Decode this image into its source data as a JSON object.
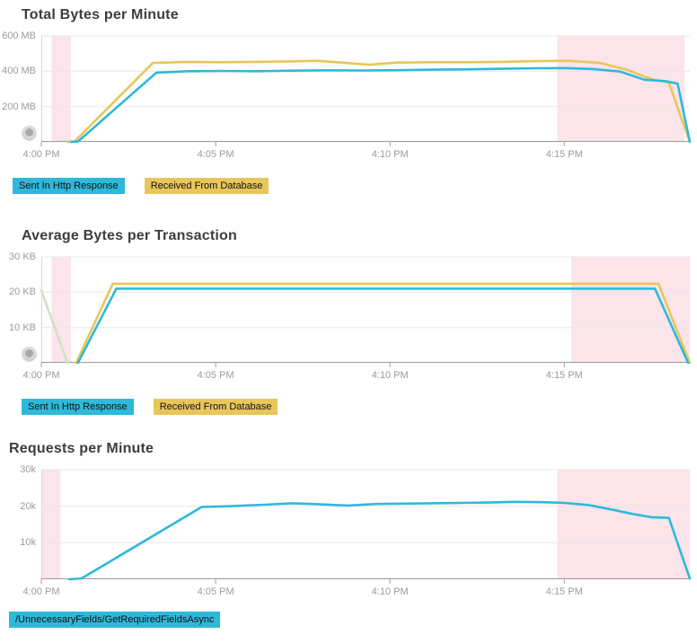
{
  "chart_data": [
    {
      "type": "line",
      "title": "Total Bytes per Minute",
      "y_unit": "MB",
      "xlim": [
        0,
        18.6
      ],
      "ylim": [
        0,
        600
      ],
      "grid": true,
      "legend_position": "bottom-left",
      "yticks": [
        {
          "v": 600,
          "label": "600 MB"
        },
        {
          "v": 400,
          "label": "400 MB"
        },
        {
          "v": 200,
          "label": "200 MB"
        }
      ],
      "xticks": [
        {
          "v": 0,
          "label": "4:00 PM"
        },
        {
          "v": 5,
          "label": "4:05 PM"
        },
        {
          "v": 10,
          "label": "4:10 PM"
        },
        {
          "v": 15,
          "label": "4:15 PM"
        }
      ],
      "highlight_bands": [
        [
          0.3,
          0.85
        ],
        [
          14.8,
          18.45
        ]
      ],
      "highlight_color": "#fbe4ea",
      "has_handle": true,
      "series": [
        {
          "name": "Sent In Http Response",
          "color": "#2eb9da",
          "x": [
            0.85,
            1.05,
            3.3,
            4.2,
            5.2,
            6.2,
            7.2,
            8.2,
            9.2,
            10.2,
            11.2,
            12.2,
            13.2,
            14.2,
            15.0,
            15.8,
            16.6,
            17.3,
            17.9,
            18.25,
            18.6
          ],
          "values": [
            0,
            2,
            392,
            400,
            401,
            400,
            403,
            405,
            404,
            406,
            409,
            411,
            414,
            417,
            418,
            413,
            398,
            352,
            344,
            330,
            0
          ]
        },
        {
          "name": "Received From Database",
          "color": "#e9c65a",
          "x": [
            0.75,
            0.95,
            3.2,
            4.2,
            5.2,
            6.2,
            7.2,
            7.9,
            8.7,
            9.4,
            10.2,
            11.2,
            12.2,
            13.2,
            14.2,
            15.1,
            16.0,
            16.8,
            17.5,
            18.0,
            18.6
          ],
          "values": [
            0,
            2,
            447,
            453,
            451,
            453,
            456,
            459,
            448,
            437,
            449,
            451,
            451,
            453,
            457,
            459,
            448,
            408,
            355,
            335,
            0
          ]
        }
      ]
    },
    {
      "type": "line",
      "title": "Average Bytes per Transaction",
      "y_unit": "KB",
      "xlim": [
        0,
        18.6
      ],
      "ylim": [
        0,
        30
      ],
      "grid": true,
      "legend_position": "bottom-left",
      "yticks": [
        {
          "v": 30,
          "label": "30 KB"
        },
        {
          "v": 20,
          "label": "20 KB"
        },
        {
          "v": 10,
          "label": "10 KB"
        }
      ],
      "xticks": [
        {
          "v": 0,
          "label": "4:00 PM"
        },
        {
          "v": 5,
          "label": "4:05 PM"
        },
        {
          "v": 10,
          "label": "4:10 PM"
        },
        {
          "v": 15,
          "label": "4:15 PM"
        }
      ],
      "highlight_bands": [
        [
          0.3,
          0.85
        ],
        [
          15.2,
          18.6
        ]
      ],
      "highlight_color": "#fbe4ea",
      "has_handle": true,
      "series": [
        {
          "name": "Sent In Http Response",
          "color": "#2eb9da",
          "x": [
            1.05,
            2.15,
            6,
            10,
            14,
            17.6,
            18.55
          ],
          "values": [
            0,
            21,
            21,
            21,
            21,
            21,
            0
          ]
        },
        {
          "name": "Received From Database",
          "color": "#e9c65a",
          "x": [
            1.0,
            2.05,
            6,
            10,
            14,
            17.7,
            18.6
          ],
          "values": [
            0,
            22.4,
            22.4,
            22.4,
            22.4,
            22.4,
            0
          ]
        },
        {
          "name": "",
          "color": "#cfe3c0",
          "x": [
            0,
            0.75
          ],
          "values": [
            20.5,
            0
          ]
        }
      ]
    },
    {
      "type": "line",
      "title": "Requests per Minute",
      "y_unit": "k requests",
      "xlim": [
        0,
        18.6
      ],
      "ylim": [
        0,
        30
      ],
      "grid": true,
      "legend_position": "bottom-left",
      "yticks": [
        {
          "v": 30,
          "label": "30k"
        },
        {
          "v": 20,
          "label": "20k"
        },
        {
          "v": 10,
          "label": "10k"
        }
      ],
      "xticks": [
        {
          "v": 0,
          "label": "4:00 PM"
        },
        {
          "v": 5,
          "label": "4:05 PM"
        },
        {
          "v": 10,
          "label": "4:10 PM"
        },
        {
          "v": 15,
          "label": "4:15 PM"
        }
      ],
      "highlight_bands": [
        [
          0,
          0.55
        ],
        [
          14.8,
          18.6
        ]
      ],
      "highlight_color": "#fbe4ea",
      "has_handle": false,
      "series": [
        {
          "name": "/UnnecessaryFields/GetRequiredFieldsAsync",
          "color": "#2eb9da",
          "x": [
            0.8,
            1.15,
            4.6,
            5.4,
            6.4,
            7.2,
            8.0,
            8.8,
            9.6,
            10.4,
            11.2,
            12.0,
            12.8,
            13.6,
            14.4,
            15.0,
            15.7,
            16.4,
            17.0,
            17.5,
            18.0,
            18.6
          ],
          "values": [
            0,
            0.2,
            19.8,
            20.0,
            20.4,
            20.8,
            20.5,
            20.2,
            20.6,
            20.7,
            20.8,
            20.9,
            21.0,
            21.2,
            21.1,
            20.9,
            20.3,
            19.0,
            17.8,
            17.0,
            16.8,
            0.2
          ]
        }
      ]
    }
  ]
}
